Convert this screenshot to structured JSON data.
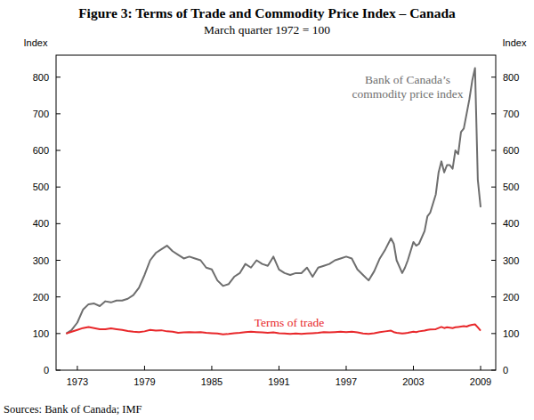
{
  "chart_data": {
    "type": "line",
    "title": "Figure 3: Terms of Trade and Commodity Price Index – Canada",
    "subtitle": "March quarter 1972 = 100",
    "ylabel": "Index",
    "y2label": "Index",
    "source": "Sources: Bank of Canada; IMF",
    "x": [
      1972.0,
      1972.5,
      1973.0,
      1973.5,
      1974.0,
      1974.5,
      1975.0,
      1975.5,
      1976.0,
      1976.5,
      1977.0,
      1977.5,
      1978.0,
      1978.5,
      1979.0,
      1979.5,
      1980.0,
      1980.5,
      1981.0,
      1981.5,
      1982.0,
      1982.5,
      1983.0,
      1983.5,
      1984.0,
      1984.5,
      1985.0,
      1985.5,
      1986.0,
      1986.5,
      1987.0,
      1987.5,
      1988.0,
      1988.5,
      1989.0,
      1989.5,
      1990.0,
      1990.5,
      1991.0,
      1991.5,
      1992.0,
      1992.5,
      1993.0,
      1993.5,
      1994.0,
      1994.5,
      1995.0,
      1995.5,
      1996.0,
      1996.5,
      1997.0,
      1997.5,
      1998.0,
      1998.5,
      1999.0,
      1999.5,
      2000.0,
      2000.5,
      2001.0,
      2001.25,
      2001.5,
      2002.0,
      2002.25,
      2002.5,
      2003.0,
      2003.25,
      2003.5,
      2004.0,
      2004.25,
      2004.5,
      2005.0,
      2005.25,
      2005.5,
      2005.75,
      2006.0,
      2006.25,
      2006.5,
      2006.75,
      2007.0,
      2007.25,
      2007.5,
      2007.75,
      2008.0,
      2008.25,
      2008.5,
      2008.75,
      2009.0
    ],
    "series": [
      {
        "name": "Bank of Canada’s commodity price index",
        "color": "#6e6e6e",
        "values": [
          100,
          110,
          130,
          165,
          180,
          182,
          175,
          188,
          185,
          190,
          190,
          195,
          205,
          225,
          260,
          300,
          320,
          330,
          340,
          325,
          315,
          305,
          310,
          305,
          300,
          280,
          275,
          245,
          230,
          235,
          255,
          265,
          290,
          280,
          300,
          290,
          285,
          310,
          275,
          265,
          260,
          265,
          265,
          280,
          255,
          280,
          285,
          290,
          300,
          305,
          310,
          305,
          275,
          260,
          245,
          270,
          305,
          330,
          360,
          345,
          300,
          265,
          280,
          300,
          350,
          340,
          345,
          380,
          420,
          430,
          480,
          540,
          570,
          540,
          560,
          560,
          550,
          600,
          590,
          650,
          660,
          700,
          740,
          790,
          825,
          520,
          445
        ]
      },
      {
        "name": "Terms of trade",
        "color": "#e8282b",
        "values": [
          100,
          105,
          110,
          115,
          118,
          115,
          112,
          112,
          114,
          112,
          110,
          107,
          105,
          104,
          106,
          110,
          108,
          109,
          106,
          105,
          102,
          103,
          104,
          103,
          104,
          102,
          101,
          100,
          98,
          99,
          101,
          102,
          104,
          105,
          104,
          103,
          102,
          103,
          101,
          100,
          99,
          100,
          99,
          100,
          101,
          102,
          104,
          103,
          104,
          105,
          104,
          105,
          103,
          100,
          99,
          101,
          104,
          106,
          108,
          104,
          102,
          100,
          101,
          102,
          105,
          104,
          106,
          108,
          110,
          111,
          112,
          115,
          118,
          115,
          117,
          116,
          115,
          117,
          118,
          119,
          120,
          119,
          122,
          124,
          125,
          117,
          108
        ]
      }
    ],
    "xlim": [
      1971.1,
      2010.35
    ],
    "xticks": [
      1973,
      1979,
      1985,
      1991,
      1997,
      2003,
      2009
    ],
    "ylim": [
      0,
      860
    ],
    "yticks": [
      0,
      100,
      200,
      300,
      400,
      500,
      600,
      700,
      800
    ],
    "y2lim": [
      0,
      860
    ],
    "y2ticks": [
      0,
      100,
      200,
      300,
      400,
      500,
      600,
      700,
      800
    ],
    "grid": false
  }
}
